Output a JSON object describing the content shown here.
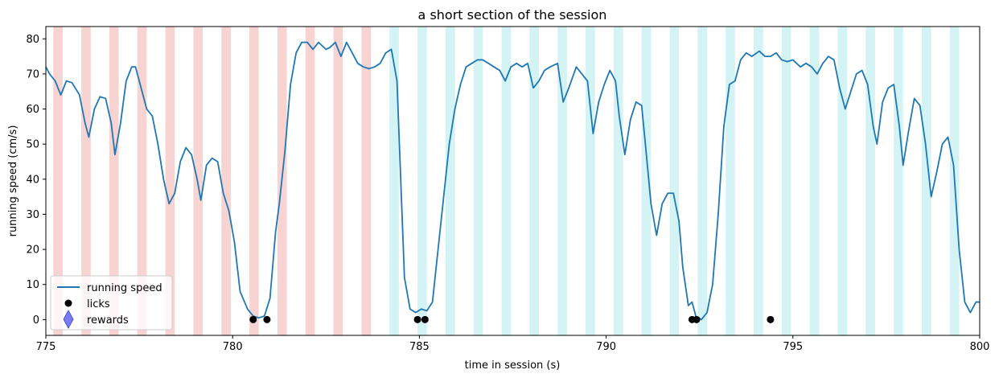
{
  "chart_data": {
    "type": "line",
    "title": "a short section of the session",
    "xlabel": "time in session (s)",
    "ylabel": "running speed (cm/s)",
    "xlim": [
      775,
      800
    ],
    "ylim": [
      -4.5,
      83.5
    ],
    "x_ticks": [
      775,
      780,
      785,
      790,
      795,
      800
    ],
    "y_ticks": [
      0,
      10,
      20,
      30,
      40,
      50,
      60,
      70,
      80
    ],
    "grid": false,
    "legend_position": "lower-left",
    "legend": [
      {
        "label": "running speed",
        "marker": "line",
        "color": "#1f77b4"
      },
      {
        "label": "licks",
        "marker": "circle",
        "color": "#000000"
      },
      {
        "label": "rewards",
        "marker": "diamond",
        "color": "#7b7bf5"
      }
    ],
    "colors": {
      "speed": "#1f77b4",
      "red_band": "#f0a8a3",
      "cyan_band": "#a8e8ec",
      "licks": "#000000",
      "rewards": "#7b7bf5"
    },
    "shaded_intervals": {
      "red": [
        [
          775.2,
          775.45
        ],
        [
          775.95,
          776.2
        ],
        [
          776.7,
          776.95
        ],
        [
          777.45,
          777.7
        ],
        [
          778.2,
          778.45
        ],
        [
          778.95,
          779.2
        ],
        [
          779.7,
          779.95
        ],
        [
          780.45,
          780.7
        ],
        [
          781.2,
          781.45
        ],
        [
          781.95,
          782.2
        ],
        [
          782.7,
          782.95
        ],
        [
          783.45,
          783.7
        ]
      ],
      "cyan": [
        [
          784.2,
          784.45
        ],
        [
          784.95,
          785.2
        ],
        [
          785.7,
          785.95
        ],
        [
          786.45,
          786.7
        ],
        [
          787.2,
          787.45
        ],
        [
          787.95,
          788.2
        ],
        [
          788.7,
          788.95
        ],
        [
          789.45,
          789.7
        ],
        [
          790.2,
          790.45
        ],
        [
          790.95,
          791.2
        ],
        [
          791.7,
          791.95
        ],
        [
          792.45,
          792.7
        ],
        [
          793.2,
          793.45
        ],
        [
          793.95,
          794.2
        ],
        [
          794.7,
          794.95
        ],
        [
          795.45,
          795.7
        ],
        [
          796.2,
          796.45
        ],
        [
          796.95,
          797.2
        ],
        [
          797.7,
          797.95
        ],
        [
          798.45,
          798.7
        ],
        [
          799.2,
          799.45
        ]
      ]
    },
    "series": [
      {
        "name": "running speed",
        "points": [
          [
            775,
            72
          ],
          [
            775.1,
            70
          ],
          [
            775.25,
            68
          ],
          [
            775.4,
            64
          ],
          [
            775.55,
            68
          ],
          [
            775.7,
            67.5
          ],
          [
            775.9,
            64
          ],
          [
            776.05,
            56
          ],
          [
            776.15,
            52
          ],
          [
            776.3,
            60
          ],
          [
            776.45,
            63.5
          ],
          [
            776.6,
            63
          ],
          [
            776.75,
            56
          ],
          [
            776.85,
            47
          ],
          [
            777,
            56
          ],
          [
            777.15,
            68
          ],
          [
            777.3,
            72
          ],
          [
            777.4,
            72
          ],
          [
            777.55,
            66
          ],
          [
            777.7,
            60
          ],
          [
            777.85,
            58
          ],
          [
            778.0,
            50
          ],
          [
            778.15,
            40
          ],
          [
            778.3,
            33
          ],
          [
            778.45,
            36
          ],
          [
            778.6,
            45
          ],
          [
            778.75,
            49
          ],
          [
            778.9,
            47
          ],
          [
            779.05,
            40
          ],
          [
            779.15,
            34
          ],
          [
            779.3,
            44
          ],
          [
            779.45,
            46
          ],
          [
            779.6,
            45
          ],
          [
            779.75,
            36
          ],
          [
            779.9,
            31
          ],
          [
            780.05,
            22
          ],
          [
            780.2,
            8
          ],
          [
            780.4,
            3
          ],
          [
            780.55,
            1
          ],
          [
            780.7,
            0.5
          ],
          [
            780.85,
            1
          ],
          [
            781,
            6
          ],
          [
            781.15,
            25
          ],
          [
            781.25,
            33
          ],
          [
            781.4,
            48
          ],
          [
            781.55,
            67
          ],
          [
            781.7,
            76
          ],
          [
            781.85,
            79
          ],
          [
            782.0,
            79
          ],
          [
            782.15,
            77
          ],
          [
            782.3,
            79
          ],
          [
            782.5,
            77
          ],
          [
            782.6,
            77.5
          ],
          [
            782.75,
            79
          ],
          [
            782.9,
            75
          ],
          [
            783.05,
            79
          ],
          [
            783.2,
            76
          ],
          [
            783.35,
            73
          ],
          [
            783.5,
            72
          ],
          [
            783.65,
            71.5
          ],
          [
            783.8,
            72
          ],
          [
            783.95,
            73
          ],
          [
            784.1,
            76
          ],
          [
            784.25,
            77
          ],
          [
            784.4,
            68
          ],
          [
            784.5,
            40
          ],
          [
            784.6,
            12
          ],
          [
            784.75,
            3
          ],
          [
            784.9,
            2
          ],
          [
            785.05,
            3
          ],
          [
            785.2,
            2.5
          ],
          [
            785.35,
            5
          ],
          [
            785.5,
            20
          ],
          [
            785.65,
            35
          ],
          [
            785.8,
            50
          ],
          [
            785.95,
            60
          ],
          [
            786.1,
            67
          ],
          [
            786.25,
            72
          ],
          [
            786.4,
            73
          ],
          [
            786.55,
            74
          ],
          [
            786.7,
            74
          ],
          [
            786.85,
            73
          ],
          [
            787.0,
            72
          ],
          [
            787.15,
            71
          ],
          [
            787.3,
            68
          ],
          [
            787.45,
            72
          ],
          [
            787.6,
            73
          ],
          [
            787.75,
            72
          ],
          [
            787.9,
            73
          ],
          [
            788.05,
            66
          ],
          [
            788.2,
            68
          ],
          [
            788.35,
            71
          ],
          [
            788.5,
            72
          ],
          [
            788.7,
            73
          ],
          [
            788.85,
            62
          ],
          [
            789.0,
            66
          ],
          [
            789.2,
            72
          ],
          [
            789.35,
            70
          ],
          [
            789.5,
            68
          ],
          [
            789.65,
            53
          ],
          [
            789.8,
            62
          ],
          [
            789.95,
            67
          ],
          [
            790.1,
            71
          ],
          [
            790.25,
            68
          ],
          [
            790.35,
            58
          ],
          [
            790.5,
            47
          ],
          [
            790.65,
            57
          ],
          [
            790.8,
            62
          ],
          [
            790.95,
            61
          ],
          [
            791.05,
            50
          ],
          [
            791.2,
            33
          ],
          [
            791.35,
            24
          ],
          [
            791.5,
            33
          ],
          [
            791.65,
            36
          ],
          [
            791.8,
            36
          ],
          [
            791.95,
            28
          ],
          [
            792.05,
            15
          ],
          [
            792.2,
            4
          ],
          [
            792.3,
            5
          ],
          [
            792.4,
            1
          ],
          [
            792.55,
            0
          ],
          [
            792.7,
            2
          ],
          [
            792.85,
            10
          ],
          [
            793.0,
            30
          ],
          [
            793.15,
            55
          ],
          [
            793.3,
            67
          ],
          [
            793.45,
            68
          ],
          [
            793.6,
            74
          ],
          [
            793.75,
            76
          ],
          [
            793.9,
            75
          ],
          [
            794.1,
            76.5
          ],
          [
            794.25,
            75
          ],
          [
            794.4,
            75
          ],
          [
            794.55,
            76
          ],
          [
            794.7,
            74
          ],
          [
            794.85,
            73.5
          ],
          [
            795.0,
            74
          ],
          [
            795.2,
            72
          ],
          [
            795.35,
            73
          ],
          [
            795.5,
            72
          ],
          [
            795.65,
            70
          ],
          [
            795.8,
            73
          ],
          [
            795.95,
            75
          ],
          [
            796.1,
            74
          ],
          [
            796.25,
            66
          ],
          [
            796.4,
            60
          ],
          [
            796.55,
            65
          ],
          [
            796.7,
            70
          ],
          [
            796.85,
            71
          ],
          [
            797.0,
            67
          ],
          [
            797.15,
            55
          ],
          [
            797.25,
            50
          ],
          [
            797.4,
            62
          ],
          [
            797.55,
            66
          ],
          [
            797.7,
            67
          ],
          [
            797.85,
            55
          ],
          [
            797.95,
            44
          ],
          [
            798.1,
            54
          ],
          [
            798.25,
            63
          ],
          [
            798.4,
            61
          ],
          [
            798.55,
            50
          ],
          [
            798.7,
            35
          ],
          [
            798.85,
            42
          ],
          [
            799.0,
            50
          ],
          [
            799.15,
            52
          ],
          [
            799.3,
            44
          ],
          [
            799.45,
            20
          ],
          [
            799.6,
            5
          ],
          [
            799.75,
            2
          ],
          [
            799.9,
            5
          ],
          [
            800,
            5
          ]
        ]
      }
    ],
    "licks": [
      780.55,
      780.92,
      784.95,
      785.15,
      792.3,
      792.42,
      794.4
    ],
    "rewards": []
  }
}
